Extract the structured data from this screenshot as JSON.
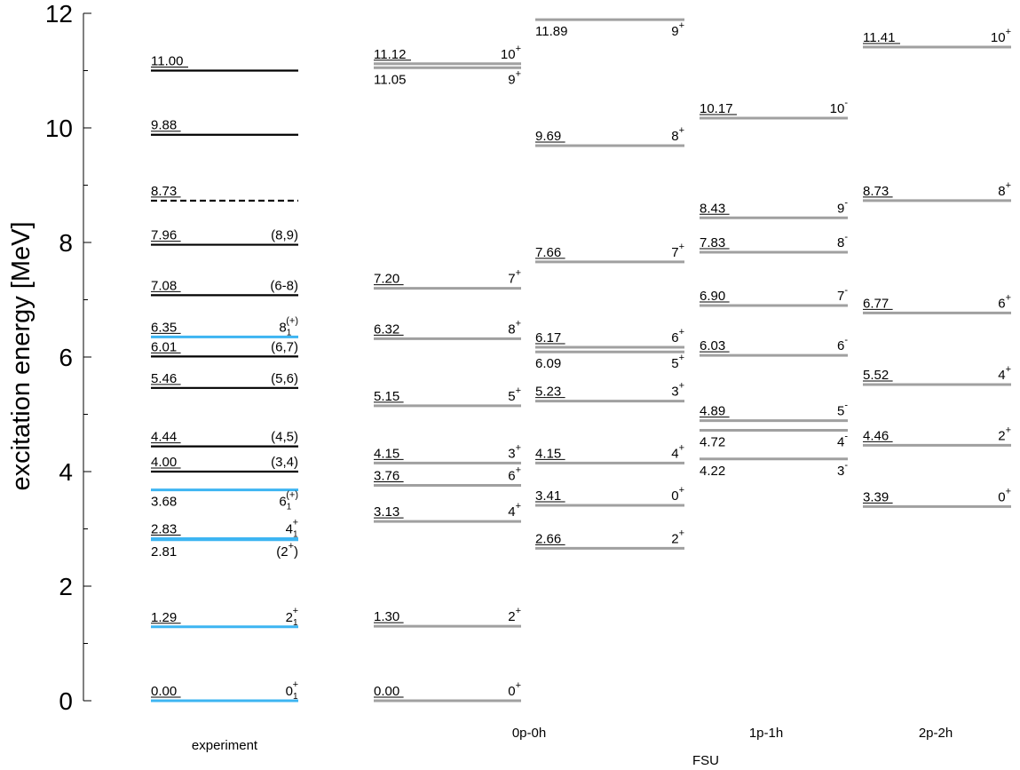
{
  "chart_data": {
    "type": "level-scheme",
    "ylabel": "excitation energy [MeV]",
    "ylim": [
      0,
      12
    ],
    "yticks": [
      "0",
      "2",
      "4",
      "6",
      "8",
      "10",
      "12"
    ],
    "group_label": "FSU",
    "colors": {
      "experiment": "#000000",
      "experiment_highlight": "#3db5f2",
      "theory": "#a0a0a0"
    },
    "columns": [
      {
        "name": "experiment",
        "levels": [
          {
            "e": 0.0,
            "label": "0.00",
            "jpi": "0",
            "parity": "+",
            "sub": "1",
            "color": "highlight"
          },
          {
            "e": 1.29,
            "label": "1.29",
            "jpi": "2",
            "parity": "+",
            "sub": "1",
            "color": "highlight"
          },
          {
            "e": 2.81,
            "label": "2.81",
            "jpi": "(2",
            "parity": "+",
            "close": ")",
            "color": "highlight",
            "label_below": true
          },
          {
            "e": 2.83,
            "label": "2.83",
            "jpi": "4",
            "parity": "+",
            "sub": "1",
            "color": "highlight"
          },
          {
            "e": 3.68,
            "label": "3.68",
            "jpi": "6",
            "parity": "(+)",
            "sub": "1",
            "color": "highlight",
            "label_below": true
          },
          {
            "e": 4.0,
            "label": "4.00",
            "jpi": "(3,4)",
            "color": "black"
          },
          {
            "e": 4.44,
            "label": "4.44",
            "jpi": "(4,5)",
            "color": "black"
          },
          {
            "e": 5.46,
            "label": "5.46",
            "jpi": "(5,6)",
            "color": "black"
          },
          {
            "e": 6.01,
            "label": "6.01",
            "jpi": "(6,7)",
            "color": "black"
          },
          {
            "e": 6.35,
            "label": "6.35",
            "jpi": "8",
            "parity": "(+)",
            "sub": "1",
            "color": "highlight"
          },
          {
            "e": 7.08,
            "label": "7.08",
            "jpi": "(6-8)",
            "color": "black"
          },
          {
            "e": 7.96,
            "label": "7.96",
            "jpi": "(8,9)",
            "color": "black"
          },
          {
            "e": 8.73,
            "label": "8.73",
            "jpi": "",
            "color": "black",
            "dashed": true
          },
          {
            "e": 9.88,
            "label": "9.88",
            "jpi": "",
            "color": "black"
          },
          {
            "e": 11.0,
            "label": "11.00",
            "jpi": "",
            "color": "black"
          }
        ]
      },
      {
        "name": "0p-0h",
        "levels": [
          {
            "e": 0.0,
            "label": "0.00",
            "jpi": "0",
            "parity": "+"
          },
          {
            "e": 1.3,
            "label": "1.30",
            "jpi": "2",
            "parity": "+"
          },
          {
            "e": 3.13,
            "label": "3.13",
            "jpi": "4",
            "parity": "+"
          },
          {
            "e": 3.76,
            "label": "3.76",
            "jpi": "6",
            "parity": "+"
          },
          {
            "e": 4.15,
            "label": "4.15",
            "jpi": "3",
            "parity": "+"
          },
          {
            "e": 5.15,
            "label": "5.15",
            "jpi": "5",
            "parity": "+"
          },
          {
            "e": 6.32,
            "label": "6.32",
            "jpi": "8",
            "parity": "+"
          },
          {
            "e": 7.2,
            "label": "7.20",
            "jpi": "7",
            "parity": "+"
          },
          {
            "e": 11.05,
            "label": "11.05",
            "jpi": "9",
            "parity": "+",
            "label_below": true
          },
          {
            "e": 11.12,
            "label": "11.12",
            "jpi": "10",
            "parity": "+"
          }
        ]
      },
      {
        "name": "",
        "levels": [
          {
            "e": 2.66,
            "label": "2.66",
            "jpi": "2",
            "parity": "+"
          },
          {
            "e": 3.41,
            "label": "3.41",
            "jpi": "0",
            "parity": "+"
          },
          {
            "e": 4.15,
            "label": "4.15",
            "jpi": "4",
            "parity": "+"
          },
          {
            "e": 5.23,
            "label": "5.23",
            "jpi": "3",
            "parity": "+"
          },
          {
            "e": 6.09,
            "label": "6.09",
            "jpi": "5",
            "parity": "+",
            "label_below": true
          },
          {
            "e": 6.17,
            "label": "6.17",
            "jpi": "6",
            "parity": "+"
          },
          {
            "e": 7.66,
            "label": "7.66",
            "jpi": "7",
            "parity": "+"
          },
          {
            "e": 9.69,
            "label": "9.69",
            "jpi": "8",
            "parity": "+"
          },
          {
            "e": 11.89,
            "label": "11.89",
            "jpi": "9",
            "parity": "+",
            "label_below": true
          }
        ]
      },
      {
        "name": "1p-1h",
        "levels": [
          {
            "e": 4.22,
            "label": "4.22",
            "jpi": "3",
            "parity": "-",
            "label_below": true
          },
          {
            "e": 4.72,
            "label": "4.72",
            "jpi": "4",
            "parity": "-",
            "label_below": true
          },
          {
            "e": 4.89,
            "label": "4.89",
            "jpi": "5",
            "parity": "-"
          },
          {
            "e": 6.03,
            "label": "6.03",
            "jpi": "6",
            "parity": "-"
          },
          {
            "e": 6.9,
            "label": "6.90",
            "jpi": "7",
            "parity": "-"
          },
          {
            "e": 7.83,
            "label": "7.83",
            "jpi": "8",
            "parity": "-"
          },
          {
            "e": 8.43,
            "label": "8.43",
            "jpi": "9",
            "parity": "-"
          },
          {
            "e": 10.17,
            "label": "10.17",
            "jpi": "10",
            "parity": "-"
          }
        ]
      },
      {
        "name": "2p-2h",
        "levels": [
          {
            "e": 3.39,
            "label": "3.39",
            "jpi": "0",
            "parity": "+"
          },
          {
            "e": 4.46,
            "label": "4.46",
            "jpi": "2",
            "parity": "+"
          },
          {
            "e": 5.52,
            "label": "5.52",
            "jpi": "4",
            "parity": "+"
          },
          {
            "e": 6.77,
            "label": "6.77",
            "jpi": "6",
            "parity": "+"
          },
          {
            "e": 8.73,
            "label": "8.73",
            "jpi": "8",
            "parity": "+"
          },
          {
            "e": 11.41,
            "label": "11.41",
            "jpi": "10",
            "parity": "+"
          }
        ]
      }
    ]
  }
}
